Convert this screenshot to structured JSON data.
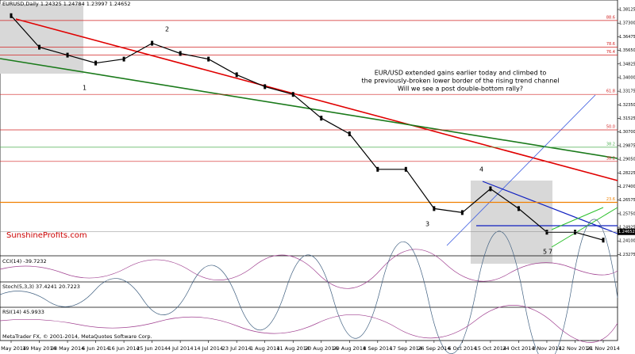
{
  "chart_data": {
    "type": "line",
    "title": "EURUSD,Daily  1.24325 1.24784 1.23997 1.24652",
    "annotation": [
      "EUR/USD extended gains earlier today and climbed to",
      "the previously-broken lower border of the rising trend channel",
      "Will we see a post double-bottom rally?"
    ],
    "watermark": "SunshineProfits.com",
    "wave_labels": [
      "1",
      "2",
      "3",
      "4",
      "5",
      "7"
    ],
    "categories": [
      "9 May 2014",
      "19 May 2014",
      "28 May 2014",
      "6 Jun 2014",
      "16 Jun 2014",
      "25 Jun 2014",
      "4 Jul 2014",
      "14 Jul 2014",
      "23 Jul 2014",
      "1 Aug 2014",
      "11 Aug 2014",
      "20 Aug 2014",
      "29 Aug 2014",
      "8 Sep 2014",
      "17 Sep 2014",
      "26 Sep 2014",
      "6 Oct 2014",
      "15 Oct 2014",
      "24 Oct 2014",
      "3 Nov 2014",
      "12 Nov 2014",
      "21 Nov 2014"
    ],
    "values": [
      1.3775,
      1.3584,
      1.3536,
      1.3488,
      1.3512,
      1.3608,
      1.3546,
      1.3512,
      1.3417,
      1.3345,
      1.3298,
      1.3154,
      1.3059,
      1.2844,
      1.2844,
      1.2606,
      1.2582,
      1.2726,
      1.2606,
      1.2463,
      1.2463,
      1.2415
    ],
    "color": "#000000",
    "ylim": [
      1.232,
      1.387
    ],
    "yticks": [
      1.23275,
      {
        "value": 1.241,
        "label": "1.24100"
      },
      1.24925,
      {
        "value": 1.2575,
        "label": "1.25750"
      },
      1.26575,
      {
        "value": 1.274,
        "label": "1.27400"
      },
      1.28225,
      {
        "value": 1.2905,
        "label": "1.29050"
      },
      1.29875,
      {
        "value": 1.307,
        "label": "1.30700"
      },
      1.31525,
      {
        "value": 1.3235,
        "label": "1.32350"
      },
      1.33175,
      {
        "value": 1.34,
        "label": "1.34000"
      },
      1.34825,
      {
        "value": 1.3565,
        "label": "1.35650"
      },
      1.36475,
      {
        "value": 1.373,
        "label": "1.37300"
      },
      1.38125
    ],
    "levels": [
      {
        "name": "88.6",
        "value": 1.3746,
        "color": "#d22222"
      },
      {
        "name": "78.6",
        "value": 1.3584,
        "color": "#d22222"
      },
      {
        "name": "76.4",
        "value": 1.3536,
        "color": "#d22222"
      },
      {
        "name": "61.8",
        "value": 1.3298,
        "color": "#d22222"
      },
      {
        "name": "50.0",
        "value": 1.3083,
        "color": "#d22222"
      },
      {
        "name": "38.2",
        "value": 1.2978,
        "color": "#4caf50"
      },
      {
        "name": "38.2",
        "value": 1.2892,
        "color": "#d22222"
      },
      {
        "name": "23.6",
        "value": 1.2644,
        "color": "#f08000"
      }
    ],
    "last_price": 1.24652,
    "indicators": [
      "CCI(14) -39.7232",
      "Stoch(5,3,3) 37.4241 20.7223",
      "RSI(14) 45.9933"
    ],
    "footer": "MetaTrader FX, © 2001-2014, MetaQuotes Software Corp."
  }
}
